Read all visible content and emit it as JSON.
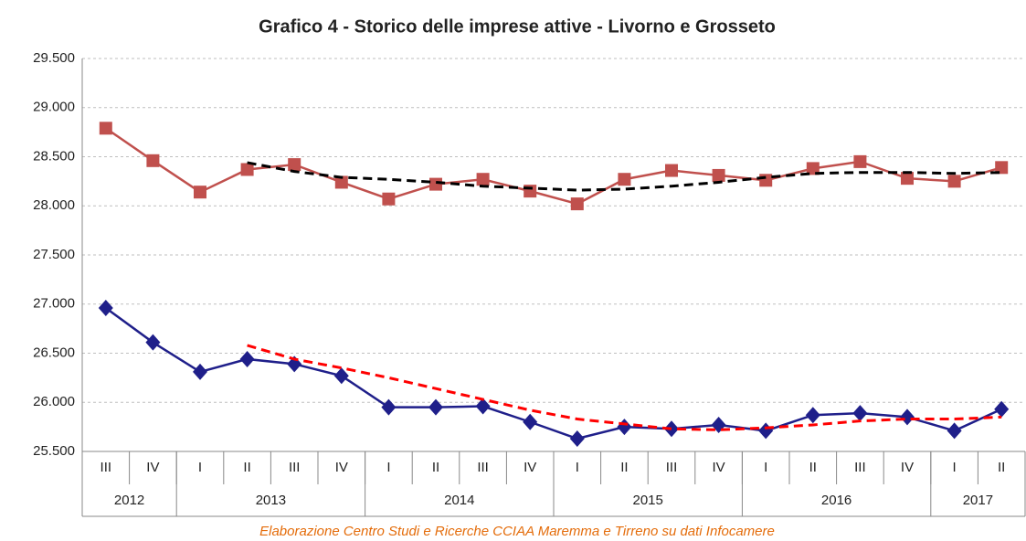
{
  "chart_data": {
    "type": "line",
    "title": "Grafico 4 - Storico delle imprese attive - Livorno e Grosseto",
    "note": "Elaborazione Centro Studi e Ricerche CCIAA Maremma e Tirreno su dati Infocamere",
    "categories": [
      "III",
      "IV",
      "I",
      "II",
      "III",
      "IV",
      "I",
      "II",
      "III",
      "IV",
      "I",
      "II",
      "III",
      "IV",
      "I",
      "II",
      "III",
      "IV",
      "I",
      "II"
    ],
    "category_groups": [
      {
        "label": "2012",
        "count": 2
      },
      {
        "label": "2013",
        "count": 4
      },
      {
        "label": "2014",
        "count": 4
      },
      {
        "label": "2015",
        "count": 4
      },
      {
        "label": "2016",
        "count": 4
      },
      {
        "label": "2017",
        "count": 2
      }
    ],
    "series": [
      {
        "color": "#c0504d",
        "marker": "square",
        "values": [
          28790,
          28460,
          28140,
          28370,
          28420,
          28240,
          28070,
          28220,
          28270,
          28150,
          28020,
          28270,
          28360,
          28310,
          28260,
          28380,
          28450,
          28280,
          28250,
          28390
        ]
      },
      {
        "color": "#1f1f8a",
        "marker": "diamond",
        "values": [
          26960,
          26610,
          26310,
          26440,
          26390,
          26270,
          25950,
          25950,
          25960,
          25800,
          25630,
          25750,
          25730,
          25770,
          25710,
          25870,
          25890,
          25850,
          25710,
          25930
        ]
      },
      {
        "color": "#000000",
        "dashed": true,
        "values": [
          null,
          null,
          null,
          28440,
          28350,
          28290,
          28270,
          28240,
          28200,
          28180,
          28160,
          28170,
          28200,
          28240,
          28290,
          28330,
          28340,
          28340,
          28330,
          28340
        ]
      },
      {
        "color": "#ff0000",
        "dashed": true,
        "values": [
          null,
          null,
          null,
          26580,
          26440,
          26350,
          26250,
          26140,
          26030,
          25920,
          25830,
          25780,
          25730,
          25720,
          25740,
          25770,
          25810,
          25830,
          25830,
          25850
        ]
      }
    ],
    "ylim": [
      25500,
      29500
    ],
    "yticks": [
      {
        "value": 25500,
        "label": "25.500"
      },
      {
        "value": 26000,
        "label": "26.000"
      },
      {
        "value": 26500,
        "label": "26.500"
      },
      {
        "value": 27000,
        "label": "27.000"
      },
      {
        "value": 27500,
        "label": "27.500"
      },
      {
        "value": 28000,
        "label": "28.000"
      },
      {
        "value": 28500,
        "label": "28.500"
      },
      {
        "value": 29000,
        "label": "29.000"
      },
      {
        "value": 29500,
        "label": "29.500"
      }
    ],
    "grid": true
  }
}
